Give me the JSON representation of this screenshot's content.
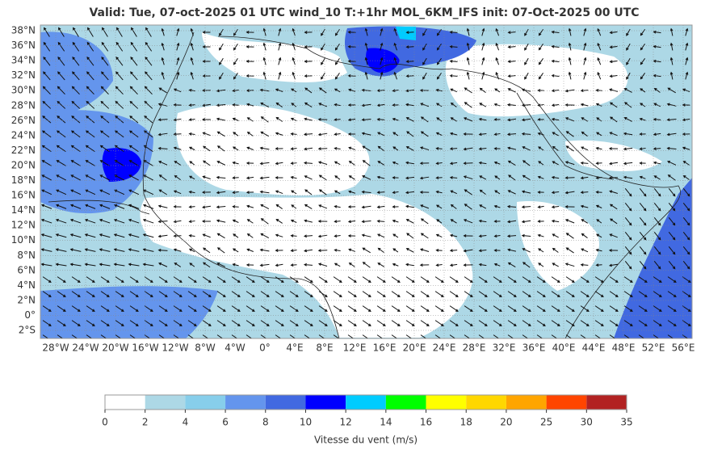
{
  "title": "Valid: Tue, 07-oct-2025   01 UTC   wind_10   T:+1hr   MOL_6KM_IFS   init: 07-Oct-2025    00 UTC",
  "map": {
    "lat_labels": [
      "38°N",
      "36°N",
      "34°N",
      "32°N",
      "30°N",
      "28°N",
      "26°N",
      "24°N",
      "22°N",
      "20°N",
      "18°N",
      "16°N",
      "14°N",
      "12°N",
      "10°N",
      "8°N",
      "6°N",
      "4°N",
      "2°N",
      "0°",
      "2°S"
    ],
    "lon_labels": [
      "28°W",
      "24°W",
      "20°W",
      "16°W",
      "12°W",
      "8°W",
      "4°W",
      "0°",
      "4°E",
      "8°E",
      "12°E",
      "16°E",
      "20°E",
      "24°E",
      "28°E",
      "32°E",
      "36°E",
      "40°E",
      "44°E",
      "48°E",
      "52°E",
      "56°E"
    ]
  },
  "colorbar": {
    "bounds": [
      0,
      2,
      4,
      6,
      8,
      10,
      12,
      14,
      16,
      18,
      20,
      25,
      30,
      35
    ],
    "colors": [
      "#ffffff",
      "#add8e6",
      "#87ceeb",
      "#6495ed",
      "#4169e1",
      "#0000ff",
      "#00ccff",
      "#00ff00",
      "#ffff00",
      "#ffd700",
      "#ffa500",
      "#ff4500",
      "#b22222"
    ],
    "label": "Vitesse du vent (m/s)"
  }
}
